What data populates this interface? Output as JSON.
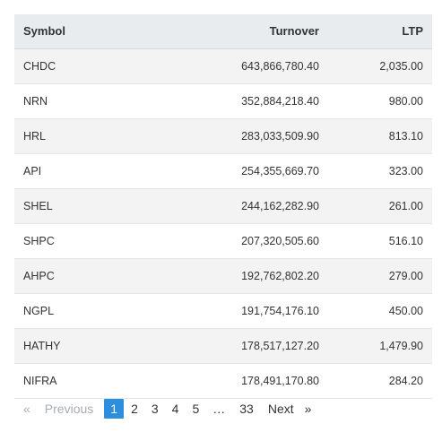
{
  "table": {
    "headers": {
      "symbol": "Symbol",
      "turnover": "Turnover",
      "ltp": "LTP"
    },
    "rows": [
      {
        "symbol": "CHDC",
        "turnover": "643,866,780.40",
        "ltp": "2,035.00"
      },
      {
        "symbol": "NRN",
        "turnover": "352,884,218.40",
        "ltp": "980.00"
      },
      {
        "symbol": "HRL",
        "turnover": "283,033,509.90",
        "ltp": "813.10"
      },
      {
        "symbol": "API",
        "turnover": "254,355,669.70",
        "ltp": "323.00"
      },
      {
        "symbol": "SHEL",
        "turnover": "244,162,282.90",
        "ltp": "261.00"
      },
      {
        "symbol": "SHPC",
        "turnover": "207,320,505.60",
        "ltp": "516.10"
      },
      {
        "symbol": "AHPC",
        "turnover": "192,762,802.20",
        "ltp": "279.00"
      },
      {
        "symbol": "NGPL",
        "turnover": "191,754,176.10",
        "ltp": "450.00"
      },
      {
        "symbol": "HATHY",
        "turnover": "178,517,127.20",
        "ltp": "1,479.90"
      },
      {
        "symbol": "NIFRA",
        "turnover": "178,491,170.80",
        "ltp": "284.20"
      }
    ]
  },
  "pagination": {
    "prev_glyph": "«",
    "prev_label": "Previous",
    "pages": [
      "1",
      "2",
      "3",
      "4",
      "5"
    ],
    "active_page": "1",
    "ellipsis": "…",
    "last_page": "33",
    "next_label": "Next",
    "next_glyph": "»"
  },
  "colors": {
    "header_bg": "#e9ecef",
    "row_alt_bg": "#f3f3f3",
    "active_page_bg": "#2b8fde",
    "disabled_text": "#a8adb2"
  }
}
